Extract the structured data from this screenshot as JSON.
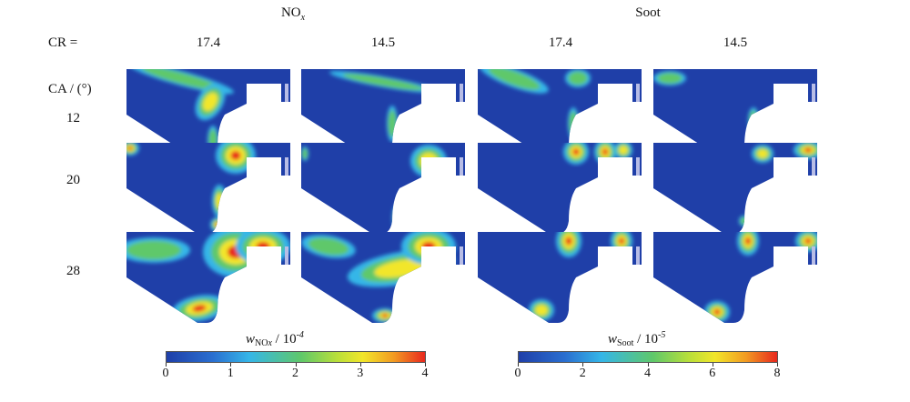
{
  "headers": {
    "nox": "NO",
    "nox_sub": "x",
    "soot": "Soot"
  },
  "row_labels": {
    "cr_label": "CR =",
    "ca_label": "CA / (°)",
    "ca_values": [
      "12",
      "20",
      "28"
    ]
  },
  "cr_values": [
    "17.4",
    "14.5",
    "17.4",
    "14.5"
  ],
  "colorbars": {
    "nox": {
      "symbol": "w",
      "sub": "NO",
      "sub_italic": "x",
      "rest": " / 10",
      "exp": "-4",
      "ticks": [
        "0",
        "1",
        "2",
        "3",
        "4"
      ],
      "range": [
        0,
        4
      ]
    },
    "soot": {
      "symbol": "w",
      "sub": "Soot",
      "rest": " / 10",
      "exp": "-5",
      "ticks": [
        "0",
        "2",
        "4",
        "6",
        "8"
      ],
      "range": [
        0,
        8
      ]
    }
  },
  "colors": {
    "low": "#1f3fa8",
    "mid_low": "#35b6e8",
    "mid": "#5fc86a",
    "mid_high": "#f2e62a",
    "high": "#e8281e"
  }
}
